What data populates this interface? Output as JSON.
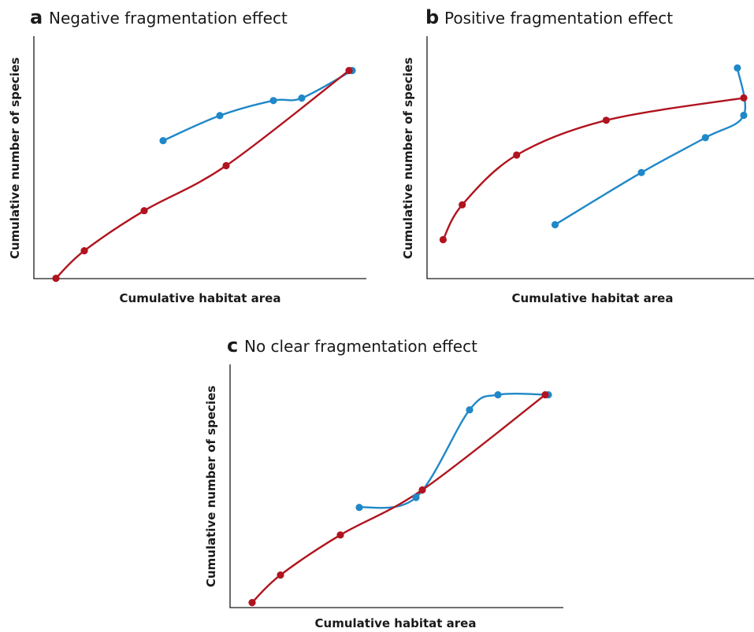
{
  "chart_data": [
    {
      "type": "line",
      "panel": "a",
      "title": "Negative fragmentation effect",
      "xlabel": "Cumulative habitat area",
      "ylabel": "Cumulative number of species",
      "xlim": [
        0,
        100
      ],
      "ylim": [
        0,
        100
      ],
      "grid": false,
      "legend": "none",
      "series": [
        {
          "color": "#b0141e",
          "x": [
            6,
            15,
            34,
            60,
            99
          ],
          "y": [
            8,
            19,
            35,
            53,
            91
          ]
        },
        {
          "color": "#1f88c8",
          "x": [
            40,
            58,
            75,
            84,
            100
          ],
          "y": [
            63,
            73,
            79,
            80,
            91
          ]
        }
      ]
    },
    {
      "type": "line",
      "panel": "b",
      "title": "Positive fragmentation effect",
      "xlabel": "Cumulative habitat area",
      "ylabel": "Cumulative number of species",
      "xlim": [
        0,
        100
      ],
      "ylim": [
        0,
        100
      ],
      "grid": false,
      "legend": "none",
      "series": [
        {
          "color": "#b0141e",
          "x": [
            6,
            12,
            29,
            57,
            100
          ],
          "y": [
            22,
            36,
            56,
            70,
            79
          ]
        },
        {
          "color": "#1f88c8",
          "x": [
            41,
            68,
            88,
            100,
            98
          ],
          "y": [
            28,
            49,
            63,
            72,
            91
          ]
        }
      ]
    },
    {
      "type": "line",
      "panel": "c",
      "title": "No clear fragmentation effect",
      "xlabel": "Cumulative habitat area",
      "ylabel": "Cumulative number of species",
      "xlim": [
        0,
        100
      ],
      "ylim": [
        0,
        100
      ],
      "grid": false,
      "legend": "none",
      "series": [
        {
          "color": "#b0141e",
          "x": [
            6,
            15,
            34,
            60,
            99
          ],
          "y": [
            8,
            19,
            35,
            53,
            91
          ]
        },
        {
          "color": "#1f88c8",
          "x": [
            40,
            58,
            75,
            84,
            100
          ],
          "y": [
            46,
            50,
            85,
            91,
            91
          ]
        }
      ]
    }
  ],
  "figure": {
    "panels": [
      {
        "letter": "a",
        "title": "Negative fragmentation effect",
        "xlabel": "Cumulative habitat area",
        "ylabel": "Cumulative number of species"
      },
      {
        "letter": "b",
        "title": "Positive fragmentation effect",
        "xlabel": "Cumulative habitat area",
        "ylabel": "Cumulative number of species"
      },
      {
        "letter": "c",
        "title": "No clear fragmentation effect",
        "xlabel": "Cumulative habitat area",
        "ylabel": "Cumulative number of species"
      }
    ]
  }
}
